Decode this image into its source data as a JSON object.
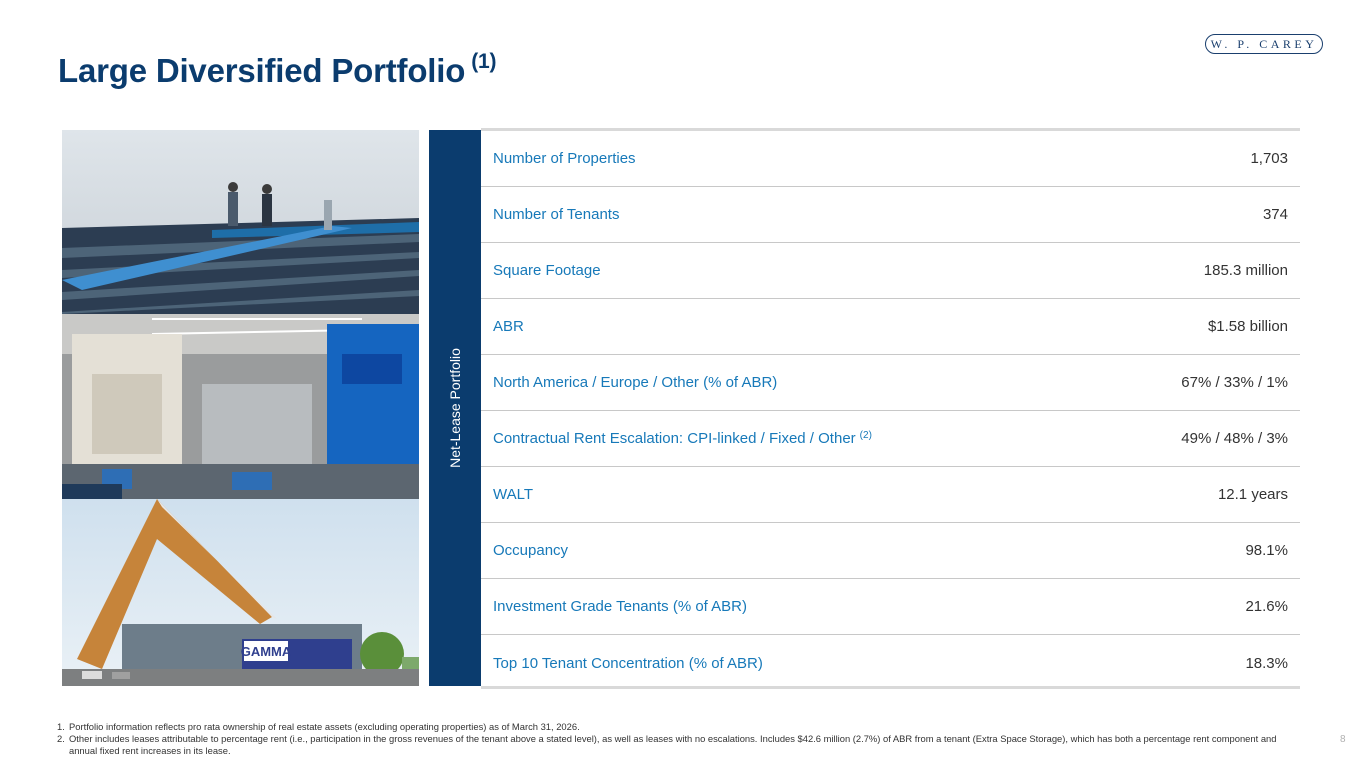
{
  "header": {
    "title": "Large Diversified Portfolio",
    "title_sup": "(1)",
    "logo_text": "W. P. CAREY"
  },
  "side_label": "Net-Lease Portfolio",
  "rows": [
    {
      "label": "Number of Properties",
      "value": "1,703"
    },
    {
      "label": "Number of Tenants",
      "value": "374"
    },
    {
      "label": "Square Footage",
      "value": "185.3 million"
    },
    {
      "label": "ABR",
      "value": "$1.58 billion"
    },
    {
      "label": "North America / Europe / Other (% of ABR)",
      "value": "67% / 33% / 1%"
    },
    {
      "label": "Contractual Rent Escalation: CPI-linked / Fixed / Other",
      "sup": "(2)",
      "value": "49% / 48% / 3%"
    },
    {
      "label": "WALT",
      "value": "12.1 years"
    },
    {
      "label": "Occupancy",
      "value": "98.1%"
    },
    {
      "label": "Investment Grade Tenants (% of ABR)",
      "value": "21.6%"
    },
    {
      "label": "Top 10 Tenant Concentration (% of ABR)",
      "value": "18.3%"
    }
  ],
  "photos": {
    "store_sign": "GAMMA"
  },
  "footnotes": [
    {
      "num": "1.",
      "text": "Portfolio information reflects pro rata ownership of real estate assets (excluding operating properties) as of March 31, 2026."
    },
    {
      "num": "2.",
      "text": "Other includes leases attributable to percentage rent (i.e., participation in the gross revenues of the tenant above a stated level), as well as leases with no escalations. Includes $42.6 million (2.7%) of ABR from a tenant (Extra Space Storage), which has both a percentage rent component and annual fixed rent increases in its lease."
    }
  ],
  "page_number": "8",
  "colors": {
    "navy": "#0b3c6e",
    "label_blue": "#1779b9",
    "rule_gray": "#c8c8c8"
  }
}
